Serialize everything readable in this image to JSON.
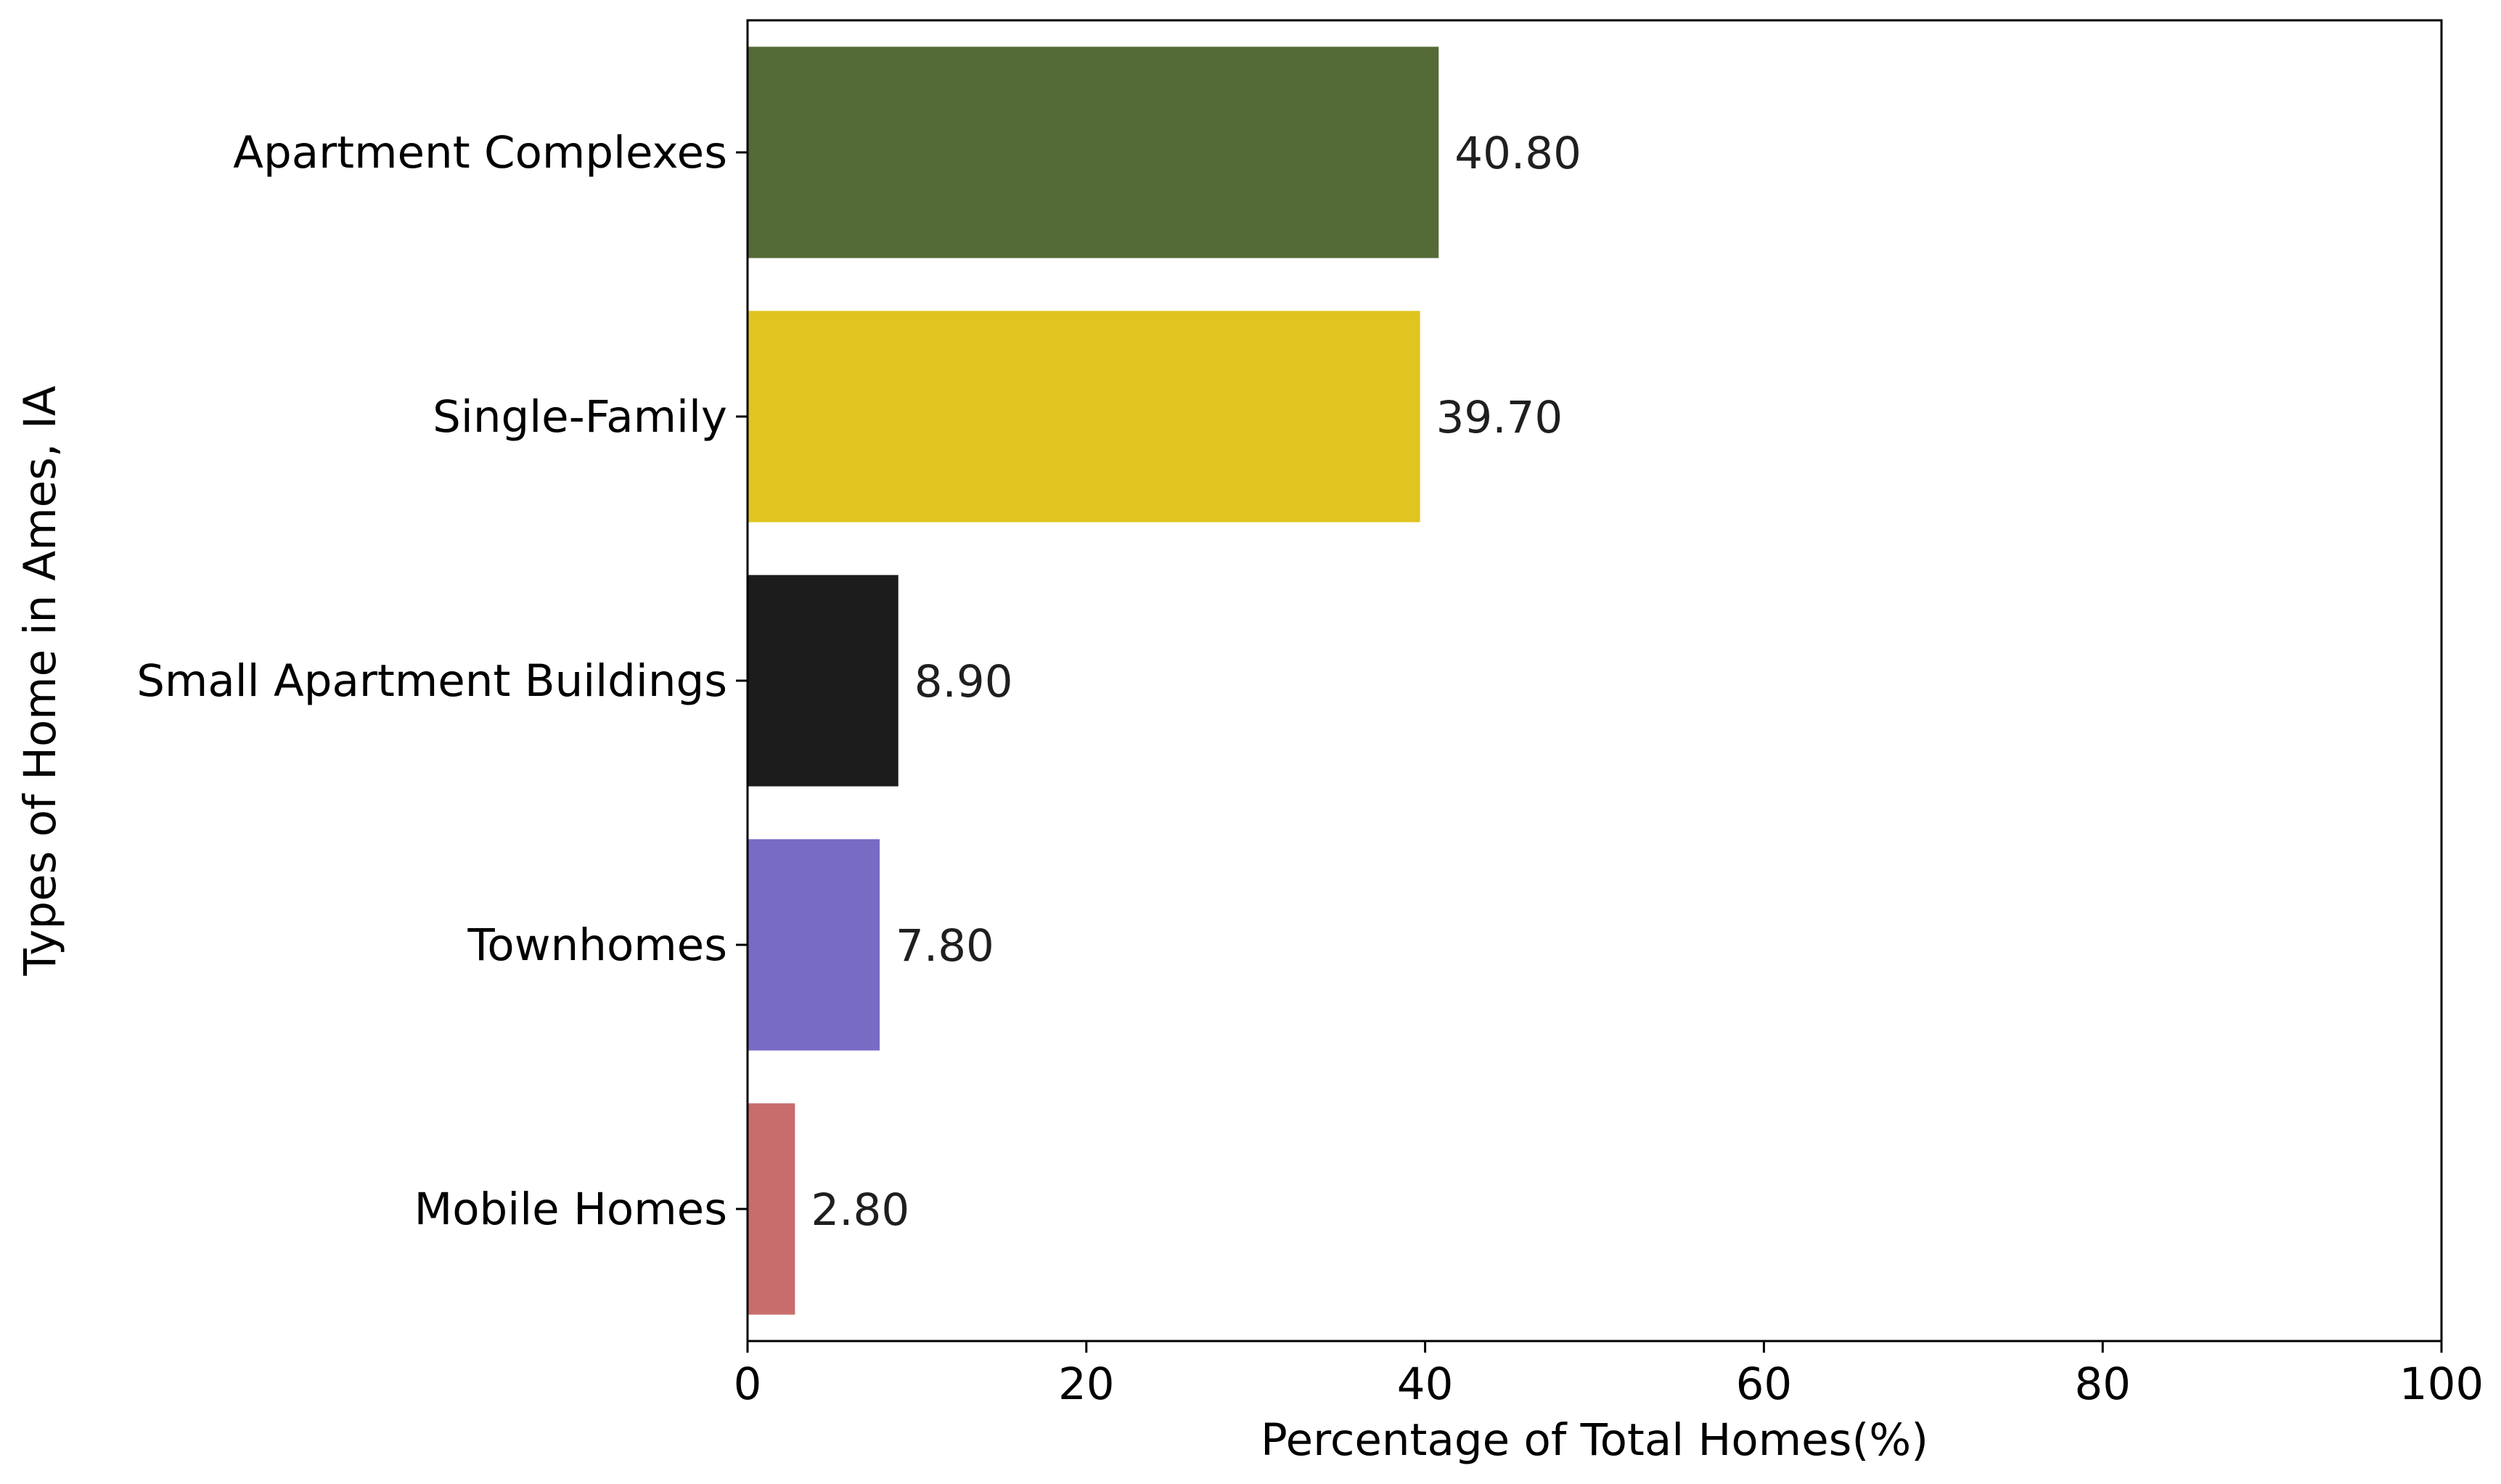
{
  "chart_data": {
    "type": "bar",
    "orientation": "horizontal",
    "categories": [
      "Apartment Complexes",
      "Single-Family",
      "Small Apartment Buildings",
      "Townhomes",
      "Mobile Homes"
    ],
    "values": [
      40.8,
      39.7,
      8.9,
      7.8,
      2.8
    ],
    "value_labels": [
      "40.80",
      "39.70",
      "8.90",
      "7.80",
      "2.80"
    ],
    "colors": [
      "#556b37",
      "#e0c41f",
      "#1c1c1c",
      "#776bc4",
      "#c96c6c"
    ],
    "xlabel": "Percentage of Total Homes(%)",
    "ylabel": "Types of Home in Ames, IA",
    "xlim": [
      0,
      100
    ],
    "xticks": [
      0,
      20,
      40,
      60,
      80,
      100
    ],
    "grid": false,
    "legend": "none"
  }
}
